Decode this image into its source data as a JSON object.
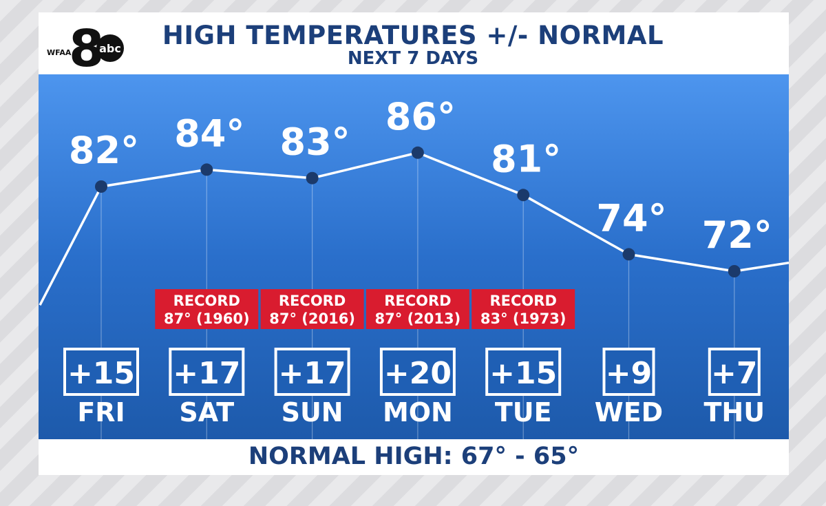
{
  "header": {
    "title": "HIGH TEMPERATURES +/- NORMAL",
    "subtitle": "NEXT 7 DAYS",
    "logo_text": "WFAA",
    "logo_numeral": "8",
    "network": "abc"
  },
  "footer": {
    "normal_high": "NORMAL HIGH: 67° - 65°"
  },
  "colors": {
    "title": "#1c3f7a",
    "line": "#ffffff",
    "point": "#1b3a6b",
    "record_bg": "#d91c2f",
    "box_border": "#ffffff",
    "box_fill": "#1f5fb4"
  },
  "chart_data": {
    "type": "line",
    "title": "HIGH TEMPERATURES +/- NORMAL",
    "subtitle": "NEXT 7 DAYS",
    "categories": [
      "FRI",
      "SAT",
      "SUN",
      "MON",
      "TUE",
      "WED",
      "THU"
    ],
    "series": [
      {
        "values": [
          82,
          84,
          83,
          86,
          81,
          74,
          72
        ],
        "labels": [
          "82°",
          "84°",
          "83°",
          "86°",
          "81°",
          "74°",
          "72°"
        ]
      }
    ],
    "anomalies": [
      "+15",
      "+17",
      "+17",
      "+20",
      "+15",
      "+9",
      "+7"
    ],
    "records": [
      null,
      {
        "label": "RECORD",
        "value": "87° (1960)"
      },
      {
        "label": "RECORD",
        "value": "87° (2016)"
      },
      {
        "label": "RECORD",
        "value": "87° (2013)"
      },
      {
        "label": "RECORD",
        "value": "83° (1973)"
      },
      null,
      null
    ],
    "line_extends_left_from": 68,
    "line_extends_right_to": 73,
    "ylim": [
      60,
      90
    ],
    "grid": false,
    "legend": "none"
  }
}
